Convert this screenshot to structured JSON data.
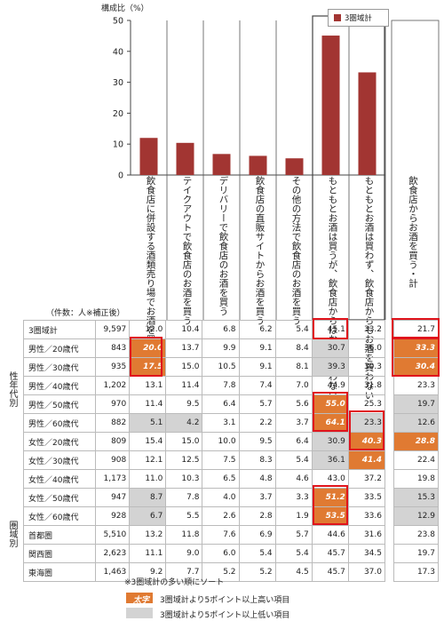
{
  "chart_data": {
    "type": "bar",
    "ylabel": "構成比（%）",
    "ylim": [
      0,
      50
    ],
    "yticks": [
      0,
      10,
      20,
      30,
      40,
      50
    ],
    "legend": "3圏域計",
    "legend_position": "top-right",
    "categories": [
      "飲食店に併設する酒類売り場でお酒を買う",
      "テイクアウトで飲食店のお酒を買う",
      "デリバリーで飲食店のお酒を買う",
      "飲食店の直販サイトからお酒を買う",
      "その他の方法で飲食店のお酒を買う",
      "もともとお酒は買うが、飲食店からはお酒を買わない",
      "もともとお酒は買わず、飲食店からもお酒を買わない"
    ],
    "values": [
      12.0,
      10.4,
      6.8,
      6.2,
      5.4,
      45.1,
      33.2
    ],
    "side_label": "飲食店からお酒を買う・計",
    "color": "#a23532"
  },
  "table": {
    "header": "（件数：人※補正後）",
    "rows": [
      {
        "label": "3圏域計",
        "n": "9,597",
        "values": [
          "12.0",
          "10.4",
          "6.8",
          "6.2",
          "5.4",
          "45.1",
          "33.2"
        ],
        "side": "21.7"
      },
      {
        "label": "男性／20歳代",
        "n": "843",
        "values": [
          "20.0",
          "13.7",
          "9.9",
          "9.1",
          "8.4",
          "30.7",
          "36.0"
        ],
        "side": "33.3"
      },
      {
        "label": "男性／30歳代",
        "n": "935",
        "values": [
          "17.5",
          "15.0",
          "10.5",
          "9.1",
          "8.1",
          "39.3",
          "30.3"
        ],
        "side": "30.4"
      },
      {
        "label": "男性／40歳代",
        "n": "1,202",
        "values": [
          "13.1",
          "11.4",
          "7.8",
          "7.4",
          "7.0",
          "44.9",
          "31.8"
        ],
        "side": "23.3"
      },
      {
        "label": "男性／50歳代",
        "n": "970",
        "values": [
          "11.4",
          "9.5",
          "6.4",
          "5.7",
          "5.6",
          "55.0",
          "25.3"
        ],
        "side": "19.7"
      },
      {
        "label": "男性／60歳代",
        "n": "882",
        "values": [
          "5.1",
          "4.2",
          "3.1",
          "2.2",
          "3.7",
          "64.1",
          "23.3"
        ],
        "side": "12.6"
      },
      {
        "label": "女性／20歳代",
        "n": "809",
        "values": [
          "15.4",
          "15.0",
          "10.0",
          "9.5",
          "6.4",
          "30.9",
          "40.3"
        ],
        "side": "28.8"
      },
      {
        "label": "女性／30歳代",
        "n": "908",
        "values": [
          "12.1",
          "12.5",
          "7.5",
          "8.3",
          "5.4",
          "36.1",
          "41.4"
        ],
        "side": "22.4"
      },
      {
        "label": "女性／40歳代",
        "n": "1,173",
        "values": [
          "11.0",
          "10.3",
          "6.5",
          "4.8",
          "4.6",
          "43.0",
          "37.2"
        ],
        "side": "19.8"
      },
      {
        "label": "女性／50歳代",
        "n": "947",
        "values": [
          "8.7",
          "7.8",
          "4.0",
          "3.7",
          "3.3",
          "51.2",
          "33.5"
        ],
        "side": "15.3"
      },
      {
        "label": "女性／60歳代",
        "n": "928",
        "values": [
          "6.7",
          "5.5",
          "2.6",
          "2.8",
          "1.9",
          "53.5",
          "33.6"
        ],
        "side": "12.9"
      },
      {
        "label": "首都圏",
        "n": "5,510",
        "values": [
          "13.2",
          "11.8",
          "7.6",
          "6.9",
          "5.7",
          "44.6",
          "31.6"
        ],
        "side": "23.8"
      },
      {
        "label": "関西圏",
        "n": "2,623",
        "values": [
          "11.1",
          "9.0",
          "6.0",
          "5.4",
          "5.4",
          "45.7",
          "34.5"
        ],
        "side": "19.7"
      },
      {
        "label": "東海圏",
        "n": "1,463",
        "values": [
          "9.2",
          "7.7",
          "5.2",
          "5.2",
          "4.5",
          "45.7",
          "37.0"
        ],
        "side": "17.3"
      }
    ],
    "groups": [
      {
        "label": "性年代別"
      },
      {
        "label": "圏域別"
      }
    ]
  },
  "notes": {
    "sort": "※3圏域計の多い順にソート",
    "high_sample": "太字",
    "high": "3圏域計より5ポイント以上高い項目",
    "low": "3圏域計より5ポイント以上低い項目"
  }
}
